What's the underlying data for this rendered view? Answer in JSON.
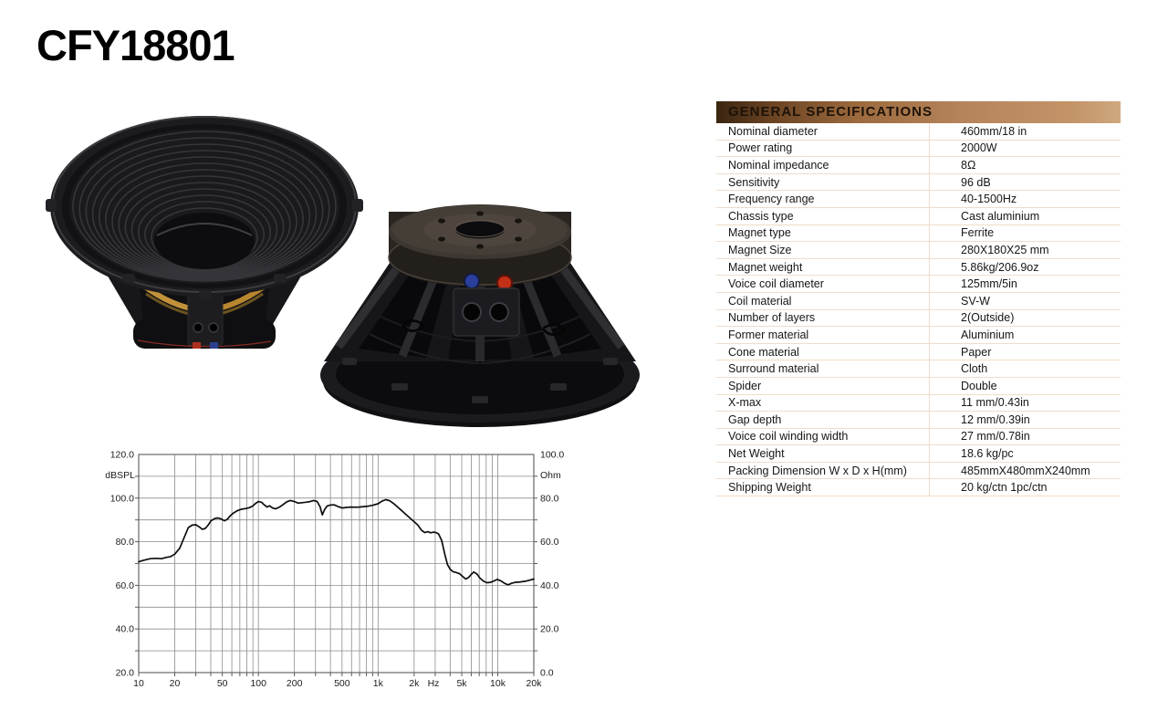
{
  "page": {
    "title": "CFY18801"
  },
  "images": {
    "front_alt": "speaker-front-angled-view",
    "rear_alt": "speaker-rear-magnet-view",
    "coil_color": "#b98a2e",
    "terminal_red": "#c23018",
    "terminal_blue": "#2b3f9c"
  },
  "spec_table": {
    "header": "GENERAL SPECIFICATIONS",
    "header_gradient": [
      "#3a2510",
      "#b5835a",
      "#cfa87e"
    ],
    "separator_color": "#efdccb",
    "rows": [
      {
        "label": "Nominal diameter",
        "value": "460mm/18 in"
      },
      {
        "label": "Power rating",
        "value": "2000W"
      },
      {
        "label": "Nominal impedance",
        "value": "8Ω"
      },
      {
        "label": "Sensitivity",
        "value": "96 dB"
      },
      {
        "label": "Frequency range",
        "value": "40-1500Hz"
      },
      {
        "label": "Chassis type",
        "value": "Cast aluminium"
      },
      {
        "label": "Magnet type",
        "value": "Ferrite"
      },
      {
        "label": "Magnet Size",
        "value": "280X180X25 mm"
      },
      {
        "label": "Magnet weight",
        "value": "5.86kg/206.9oz"
      },
      {
        "label": "Voice coil diameter",
        "value": "125mm/5in"
      },
      {
        "label": "Coil material",
        "value": "SV-W"
      },
      {
        "label": "Number of layers",
        "value": "2(Outside)"
      },
      {
        "label": "Former material",
        "value": "Aluminium"
      },
      {
        "label": "Cone material",
        "value": "Paper"
      },
      {
        "label": "Surround material",
        "value": "Cloth"
      },
      {
        "label": "Spider",
        "value": "Double"
      },
      {
        "label": "X-max",
        "value": "11 mm/0.43in"
      },
      {
        "label": "Gap depth",
        "value": "12 mm/0.39in"
      },
      {
        "label": "Voice coil winding width",
        "value": "27 mm/0.78in"
      },
      {
        "label": "Net Weight",
        "value": "18.6 kg/pc"
      },
      {
        "label": "Packing Dimension W x D x H(mm)",
        "value": "485mmX480mmX240mm"
      },
      {
        "label": "Shipping Weight",
        "value": "20 kg/ctn 1pc/ctn"
      }
    ]
  },
  "chart_data": {
    "type": "line",
    "title": "",
    "left_axis": {
      "label": "dBSPL",
      "min": 20,
      "max": 120,
      "tick_step": 20,
      "ticks": [
        "120.0",
        "100.0",
        "80.0",
        "60.0",
        "40.0",
        "20.0"
      ]
    },
    "right_axis": {
      "label": "Ohm",
      "min": 0,
      "max": 100,
      "tick_step": 20,
      "ticks": [
        "100.0",
        "80.0",
        "60.0",
        "40.0",
        "20.0",
        "0.0"
      ]
    },
    "x_axis": {
      "scale": "log",
      "min": 10,
      "max": 20000,
      "unit": "Hz",
      "tick_labels": [
        {
          "label": "10",
          "f": 10
        },
        {
          "label": "20",
          "f": 20
        },
        {
          "label": "50",
          "f": 50
        },
        {
          "label": "100",
          "f": 100
        },
        {
          "label": "200",
          "f": 200
        },
        {
          "label": "500",
          "f": 500
        },
        {
          "label": "1k",
          "f": 1000
        },
        {
          "label": "2k",
          "f": 2000
        },
        {
          "label": "Hz",
          "f": 2900
        },
        {
          "label": "5k",
          "f": 5000
        },
        {
          "label": "10k",
          "f": 10000
        },
        {
          "label": "20k",
          "f": 20000
        }
      ]
    },
    "grid": true,
    "grid_color": "#8c8c8c",
    "line_color": "#0d0d0d",
    "series": [
      {
        "name": "SPL response",
        "points": [
          [
            10,
            70.8
          ],
          [
            11,
            71.5
          ],
          [
            12.5,
            72.2
          ],
          [
            14,
            72.4
          ],
          [
            15.5,
            72.2
          ],
          [
            17,
            72.8
          ],
          [
            18.5,
            73.2
          ],
          [
            20,
            74.3
          ],
          [
            22,
            77
          ],
          [
            24,
            82
          ],
          [
            26,
            86.5
          ],
          [
            28,
            87.6
          ],
          [
            30,
            87.8
          ],
          [
            32,
            86.8
          ],
          [
            34,
            85.7
          ],
          [
            36,
            86.1
          ],
          [
            38,
            87.6
          ],
          [
            40,
            89.5
          ],
          [
            43,
            90.6
          ],
          [
            46,
            90.9
          ],
          [
            49,
            90.4
          ],
          [
            52,
            89.6
          ],
          [
            55,
            90.3
          ],
          [
            58,
            91.8
          ],
          [
            62,
            93.2
          ],
          [
            67,
            94.3
          ],
          [
            72,
            94.9
          ],
          [
            78,
            95.2
          ],
          [
            84,
            95.6
          ],
          [
            90,
            96.4
          ],
          [
            95,
            97.6
          ],
          [
            100,
            98.4
          ],
          [
            106,
            98.1
          ],
          [
            112,
            96.9
          ],
          [
            118,
            95.9
          ],
          [
            124,
            96.5
          ],
          [
            132,
            95.4
          ],
          [
            140,
            95.1
          ],
          [
            150,
            95.9
          ],
          [
            160,
            96.9
          ],
          [
            172,
            98.3
          ],
          [
            185,
            98.9
          ],
          [
            200,
            98.4
          ],
          [
            215,
            97.7
          ],
          [
            232,
            97.9
          ],
          [
            250,
            98.1
          ],
          [
            270,
            98.4
          ],
          [
            290,
            98.9
          ],
          [
            310,
            98.4
          ],
          [
            328,
            96
          ],
          [
            342,
            92.3
          ],
          [
            358,
            94.8
          ],
          [
            375,
            96.4
          ],
          [
            400,
            96.8
          ],
          [
            430,
            96.9
          ],
          [
            460,
            96.2
          ],
          [
            500,
            95.5
          ],
          [
            540,
            95.7
          ],
          [
            590,
            95.9
          ],
          [
            640,
            95.8
          ],
          [
            700,
            95.9
          ],
          [
            760,
            96.1
          ],
          [
            830,
            96.3
          ],
          [
            900,
            96.7
          ],
          [
            1000,
            97.4
          ],
          [
            1080,
            98.6
          ],
          [
            1160,
            99.3
          ],
          [
            1250,
            98.8
          ],
          [
            1350,
            97.5
          ],
          [
            1450,
            96
          ],
          [
            1550,
            94.6
          ],
          [
            1700,
            92.6
          ],
          [
            1850,
            90.8
          ],
          [
            2000,
            89.2
          ],
          [
            2150,
            87.6
          ],
          [
            2300,
            85.3
          ],
          [
            2450,
            84.2
          ],
          [
            2600,
            84.6
          ],
          [
            2750,
            84.1
          ],
          [
            2900,
            84.4
          ],
          [
            3050,
            84.2
          ],
          [
            3200,
            83.6
          ],
          [
            3400,
            80.5
          ],
          [
            3600,
            74.5
          ],
          [
            3800,
            69.5
          ],
          [
            4000,
            67.4
          ],
          [
            4250,
            66.2
          ],
          [
            4500,
            65.9
          ],
          [
            4800,
            65.3
          ],
          [
            5100,
            64
          ],
          [
            5400,
            62.9
          ],
          [
            5700,
            63.6
          ],
          [
            6000,
            65
          ],
          [
            6300,
            66.1
          ],
          [
            6700,
            65.2
          ],
          [
            7100,
            63.3
          ],
          [
            7600,
            61.9
          ],
          [
            8100,
            61.2
          ],
          [
            8700,
            61.4
          ],
          [
            9300,
            62
          ],
          [
            9900,
            62.7
          ],
          [
            10600,
            62.1
          ],
          [
            11400,
            60.9
          ],
          [
            12200,
            60.2
          ],
          [
            13000,
            60.9
          ],
          [
            14000,
            61.4
          ],
          [
            15500,
            61.6
          ],
          [
            17000,
            61.9
          ],
          [
            18500,
            62.4
          ],
          [
            20000,
            62.9
          ]
        ]
      }
    ]
  }
}
